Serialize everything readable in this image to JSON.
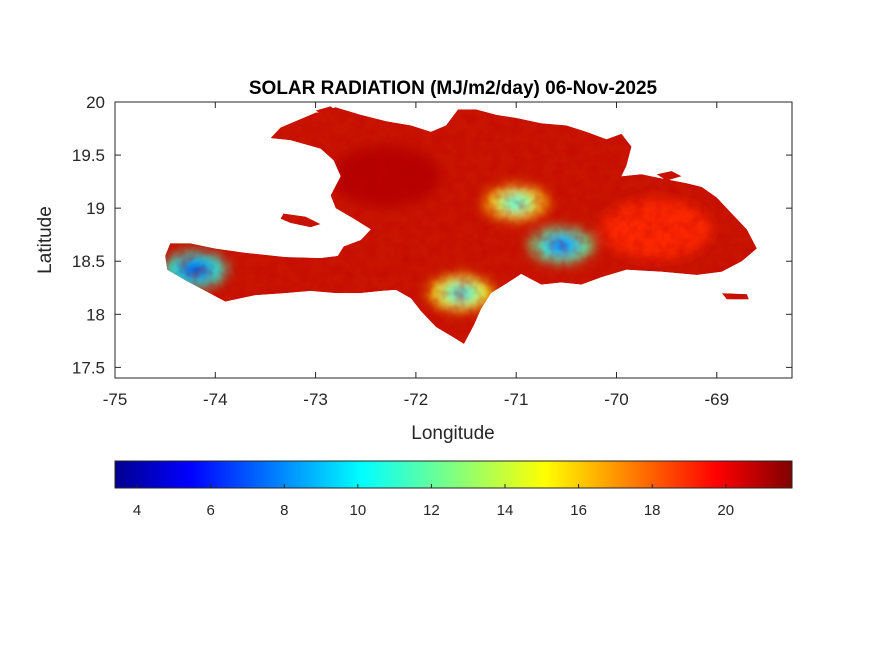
{
  "figure": {
    "title": "SOLAR RADIATION (MJ/m2/day) 06-Nov-2025",
    "xlabel": "Longitude",
    "ylabel": "Latitude"
  },
  "axes": {
    "xlim": [
      -75,
      -68.25
    ],
    "ylim": [
      17.4,
      20
    ],
    "xticks": [
      -75,
      -74,
      -73,
      -72,
      -71,
      -70,
      -69
    ],
    "xtick_labels": [
      "-75",
      "-74",
      "-73",
      "-72",
      "-71",
      "-70",
      "-69"
    ],
    "yticks": [
      17.5,
      18,
      18.5,
      19,
      19.5,
      20
    ],
    "ytick_labels": [
      "17.5",
      "18",
      "18.5",
      "19",
      "19.5",
      "20"
    ],
    "box": true
  },
  "colorbar": {
    "orientation": "horizontal",
    "location": "below",
    "colormap": "jet",
    "clim": [
      3.4,
      21.8
    ],
    "ticks": [
      4,
      6,
      8,
      10,
      12,
      14,
      16,
      18,
      20
    ],
    "tick_labels": [
      "4",
      "6",
      "8",
      "10",
      "12",
      "14",
      "16",
      "18",
      "20"
    ]
  },
  "colors": {
    "jet_dark_blue": "#00008f",
    "jet_blue": "#0000ff",
    "jet_cyan": "#00ffff",
    "jet_yellow": "#ffff00",
    "jet_red": "#ff0000",
    "jet_dark_red": "#800000",
    "land_dominant": "#c81400"
  },
  "map": {
    "region": "Hispaniola",
    "low_radiation_areas": [
      {
        "lon": -74.2,
        "lat": 18.42,
        "value": 5
      },
      {
        "lon": -70.55,
        "lat": 18.65,
        "value": 6
      },
      {
        "lon": -71.55,
        "lat": 18.2,
        "value": 9
      },
      {
        "lon": -71.0,
        "lat": 19.05,
        "value": 10
      }
    ],
    "high_radiation_areas": [
      {
        "lon": -72.3,
        "lat": 19.3,
        "value": 21
      },
      {
        "lon": -69.6,
        "lat": 18.8,
        "value": 19
      }
    ]
  }
}
